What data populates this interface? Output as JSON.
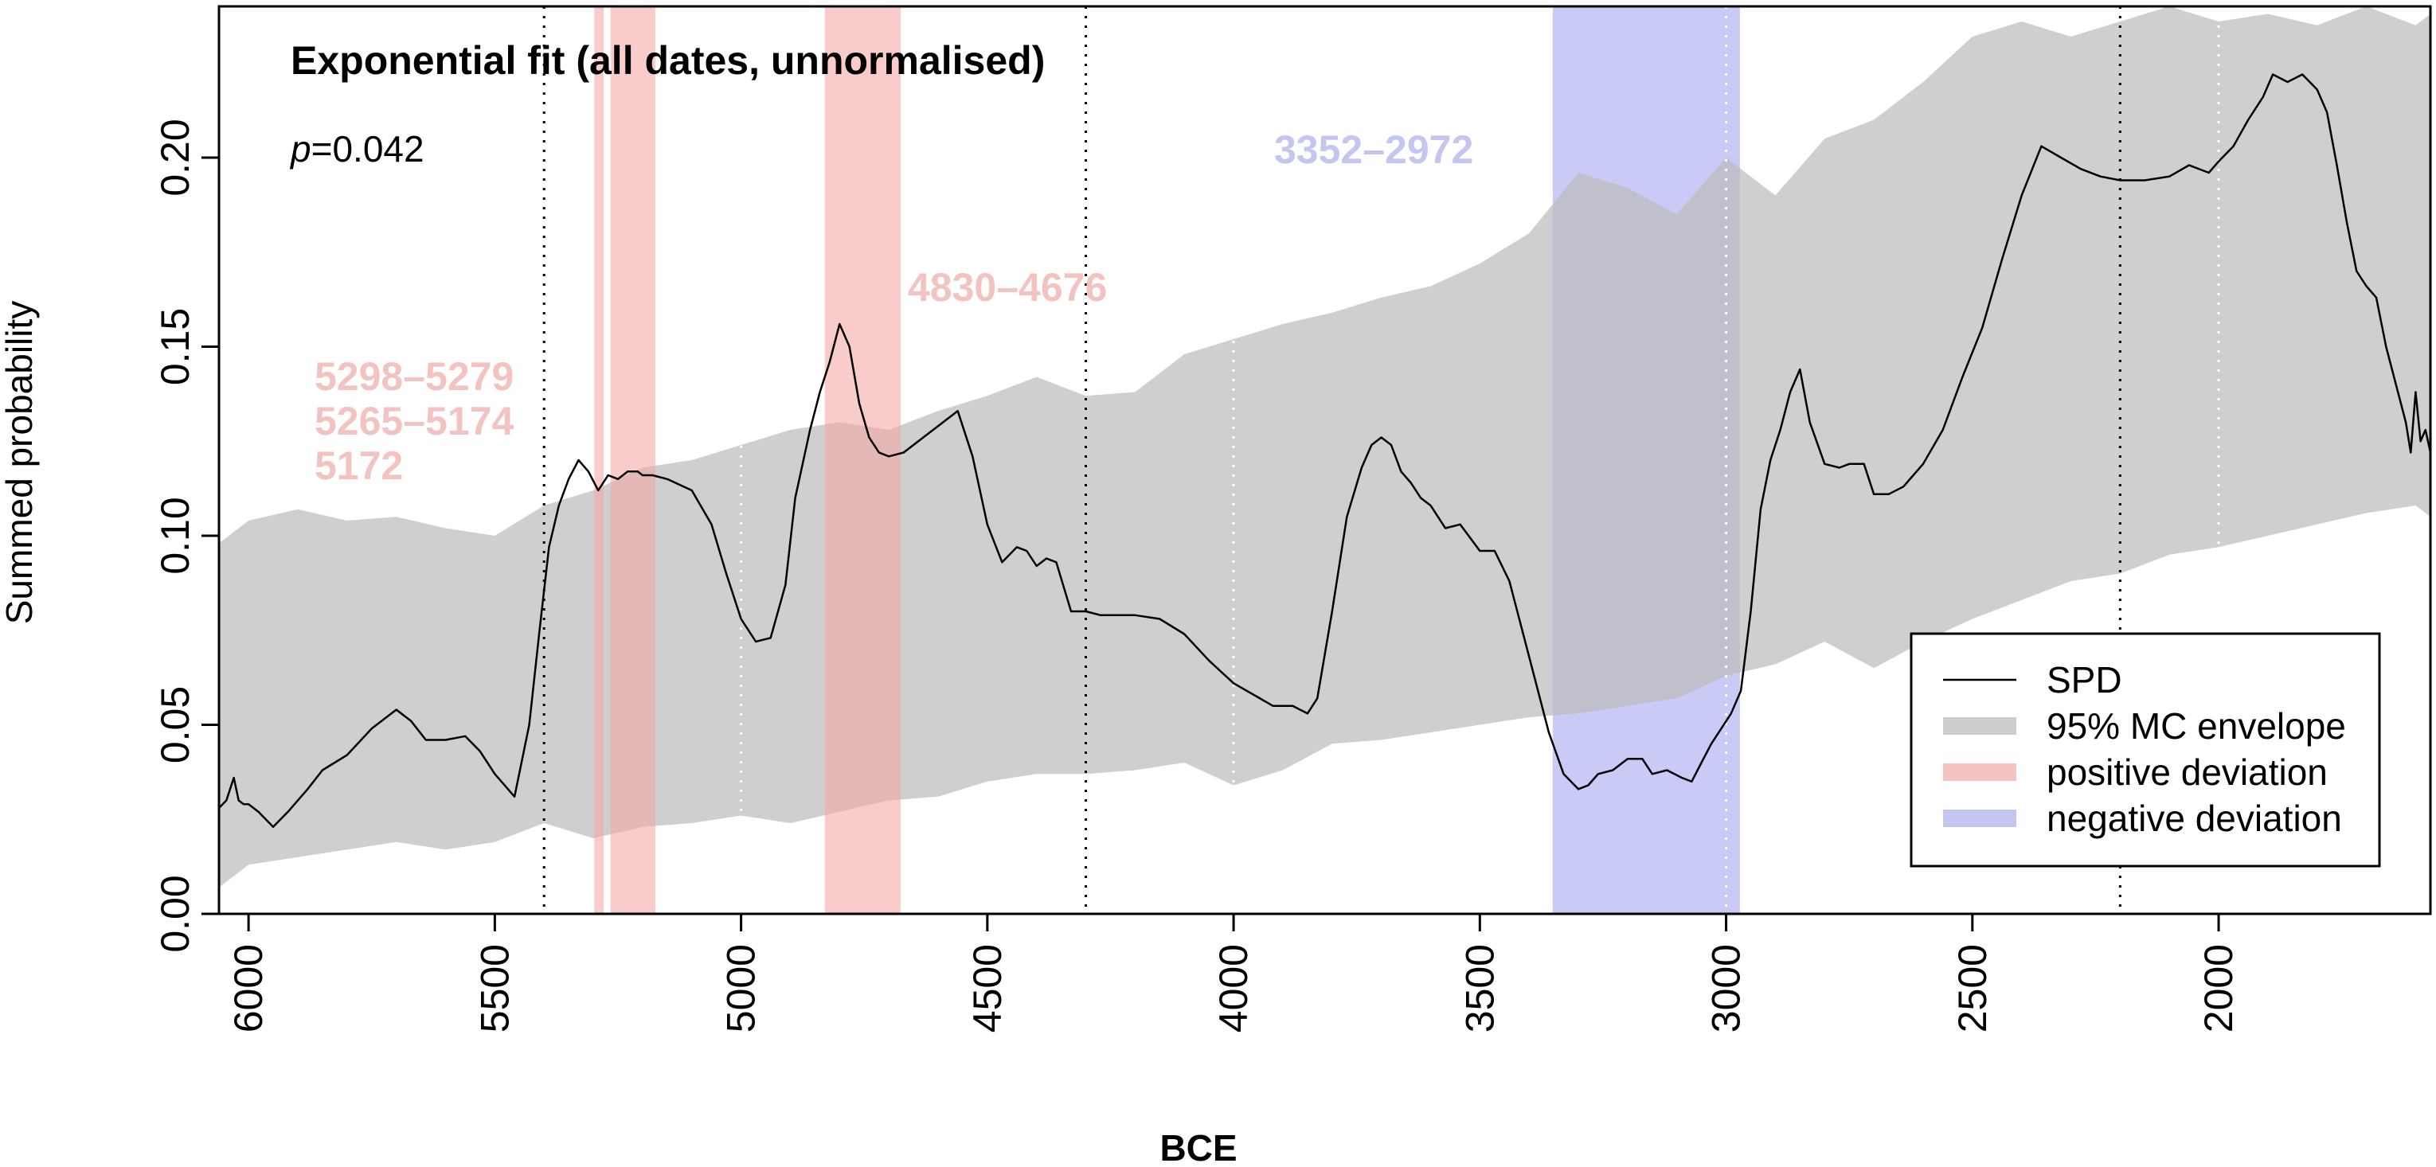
{
  "chart_data": {
    "type": "area",
    "title": "Exponential fit (all dates, unnormalised)",
    "annotation_p": {
      "italic": "p",
      "value": "=0.042"
    },
    "xlabel": "BCE",
    "ylabel": "Summed probability",
    "x_reversed": true,
    "xlim": [
      6060,
      1570
    ],
    "ylim": [
      0,
      0.24
    ],
    "xticks": [
      6000,
      5500,
      5000,
      4500,
      4000,
      3500,
      3000,
      2500,
      2000
    ],
    "yticks": [
      "0.00",
      "0.05",
      "0.10",
      "0.15",
      "0.20"
    ],
    "vertical_lines_black_dotted": [
      5400,
      4300,
      2200
    ],
    "vertical_lines_white_dotted": [
      5000,
      4000,
      3000,
      2000
    ],
    "positive_deviation_ranges": [
      [
        5298,
        5279
      ],
      [
        5265,
        5174
      ],
      [
        4830,
        4676
      ]
    ],
    "negative_deviation_ranges": [
      [
        3352,
        2972
      ]
    ],
    "deviation_labels": [
      {
        "kind": "positive",
        "lines": [
          "5298–5279",
          "5265–5174",
          "5172"
        ]
      },
      {
        "kind": "positive",
        "lines": [
          "4830–4676"
        ]
      },
      {
        "kind": "negative",
        "lines": [
          "3352–2972"
        ]
      }
    ],
    "envelope": {
      "x": [
        6060,
        6000,
        5900,
        5800,
        5700,
        5600,
        5500,
        5400,
        5300,
        5200,
        5100,
        5000,
        4900,
        4800,
        4700,
        4600,
        4500,
        4400,
        4300,
        4200,
        4100,
        4000,
        3900,
        3800,
        3700,
        3600,
        3500,
        3400,
        3300,
        3200,
        3100,
        3000,
        2900,
        2800,
        2700,
        2600,
        2500,
        2400,
        2300,
        2200,
        2100,
        2000,
        1900,
        1800,
        1700,
        1600,
        1570
      ],
      "upper": [
        0.098,
        0.104,
        0.107,
        0.104,
        0.105,
        0.102,
        0.1,
        0.108,
        0.112,
        0.118,
        0.12,
        0.124,
        0.128,
        0.13,
        0.128,
        0.133,
        0.137,
        0.142,
        0.137,
        0.138,
        0.148,
        0.152,
        0.156,
        0.159,
        0.163,
        0.166,
        0.172,
        0.18,
        0.196,
        0.192,
        0.185,
        0.2,
        0.19,
        0.205,
        0.21,
        0.22,
        0.232,
        0.236,
        0.232,
        0.236,
        0.24,
        0.236,
        0.238,
        0.235,
        0.24,
        0.235,
        0.238
      ],
      "lower": [
        0.007,
        0.013,
        0.015,
        0.017,
        0.019,
        0.017,
        0.019,
        0.024,
        0.02,
        0.023,
        0.024,
        0.026,
        0.024,
        0.027,
        0.03,
        0.031,
        0.035,
        0.037,
        0.037,
        0.038,
        0.04,
        0.034,
        0.038,
        0.045,
        0.046,
        0.048,
        0.05,
        0.052,
        0.053,
        0.055,
        0.057,
        0.063,
        0.066,
        0.072,
        0.065,
        0.072,
        0.078,
        0.083,
        0.088,
        0.09,
        0.095,
        0.097,
        0.1,
        0.103,
        0.106,
        0.108,
        0.105
      ]
    },
    "series": [
      {
        "name": "SPD",
        "x": [
          6060,
          6045,
          6030,
          6020,
          6010,
          6000,
          5980,
          5950,
          5920,
          5880,
          5850,
          5800,
          5750,
          5700,
          5670,
          5640,
          5600,
          5560,
          5530,
          5500,
          5460,
          5430,
          5410,
          5390,
          5370,
          5350,
          5330,
          5310,
          5290,
          5270,
          5250,
          5230,
          5210,
          5200,
          5180,
          5150,
          5100,
          5060,
          5030,
          5000,
          4970,
          4940,
          4910,
          4890,
          4860,
          4840,
          4820,
          4800,
          4780,
          4760,
          4740,
          4720,
          4700,
          4670,
          4630,
          4590,
          4560,
          4530,
          4500,
          4470,
          4440,
          4420,
          4400,
          4380,
          4360,
          4330,
          4300,
          4270,
          4230,
          4200,
          4150,
          4100,
          4050,
          4000,
          3960,
          3920,
          3880,
          3850,
          3830,
          3800,
          3770,
          3740,
          3720,
          3700,
          3680,
          3660,
          3640,
          3620,
          3600,
          3570,
          3540,
          3500,
          3470,
          3440,
          3400,
          3360,
          3330,
          3300,
          3280,
          3260,
          3230,
          3200,
          3170,
          3150,
          3120,
          3090,
          3070,
          3050,
          3030,
          3010,
          2990,
          2970,
          2950,
          2930,
          2910,
          2890,
          2870,
          2850,
          2830,
          2800,
          2770,
          2750,
          2720,
          2700,
          2670,
          2640,
          2600,
          2560,
          2520,
          2480,
          2440,
          2400,
          2360,
          2320,
          2280,
          2240,
          2200,
          2150,
          2100,
          2060,
          2020,
          2000,
          1970,
          1940,
          1910,
          1890,
          1860,
          1830,
          1800,
          1780,
          1760,
          1740,
          1720,
          1700,
          1680,
          1660,
          1640,
          1630,
          1620,
          1610,
          1600,
          1590,
          1580,
          1570
        ],
        "values": [
          0.028,
          0.03,
          0.036,
          0.03,
          0.029,
          0.029,
          0.027,
          0.023,
          0.027,
          0.033,
          0.038,
          0.042,
          0.049,
          0.054,
          0.051,
          0.046,
          0.046,
          0.047,
          0.043,
          0.037,
          0.031,
          0.05,
          0.074,
          0.097,
          0.108,
          0.115,
          0.12,
          0.117,
          0.112,
          0.116,
          0.115,
          0.117,
          0.117,
          0.116,
          0.116,
          0.115,
          0.112,
          0.103,
          0.09,
          0.078,
          0.072,
          0.073,
          0.087,
          0.11,
          0.128,
          0.138,
          0.146,
          0.156,
          0.15,
          0.135,
          0.126,
          0.122,
          0.121,
          0.122,
          0.126,
          0.13,
          0.133,
          0.121,
          0.103,
          0.093,
          0.097,
          0.096,
          0.092,
          0.094,
          0.093,
          0.08,
          0.08,
          0.079,
          0.079,
          0.079,
          0.078,
          0.074,
          0.067,
          0.061,
          0.058,
          0.055,
          0.055,
          0.053,
          0.057,
          0.08,
          0.105,
          0.118,
          0.124,
          0.126,
          0.124,
          0.117,
          0.114,
          0.11,
          0.108,
          0.102,
          0.103,
          0.096,
          0.096,
          0.088,
          0.068,
          0.048,
          0.037,
          0.033,
          0.034,
          0.037,
          0.038,
          0.041,
          0.041,
          0.037,
          0.038,
          0.036,
          0.035,
          0.04,
          0.045,
          0.049,
          0.053,
          0.059,
          0.08,
          0.107,
          0.12,
          0.128,
          0.138,
          0.144,
          0.13,
          0.119,
          0.118,
          0.119,
          0.119,
          0.111,
          0.111,
          0.113,
          0.119,
          0.128,
          0.142,
          0.155,
          0.173,
          0.19,
          0.203,
          0.2,
          0.197,
          0.195,
          0.194,
          0.194,
          0.195,
          0.198,
          0.196,
          0.199,
          0.203,
          0.21,
          0.216,
          0.222,
          0.22,
          0.222,
          0.218,
          0.212,
          0.198,
          0.183,
          0.17,
          0.166,
          0.163,
          0.15,
          0.14,
          0.135,
          0.13,
          0.122,
          0.138,
          0.125,
          0.128,
          0.122
        ]
      }
    ],
    "legend": {
      "placement": "bottom-right",
      "items": [
        {
          "label": "SPD",
          "kind": "line",
          "color": "#000000"
        },
        {
          "label": "95% MC envelope",
          "kind": "band",
          "color": "#cccccc"
        },
        {
          "label": "positive deviation",
          "kind": "band",
          "color": "#f3c3c2"
        },
        {
          "label": "negative deviation",
          "kind": "band",
          "color": "#c5c6ef"
        }
      ]
    },
    "colors": {
      "envelope": "#cccccc",
      "positive": "#f4a6a6",
      "negative": "#a9aaf0",
      "spd": "#000000"
    },
    "grid": false
  }
}
